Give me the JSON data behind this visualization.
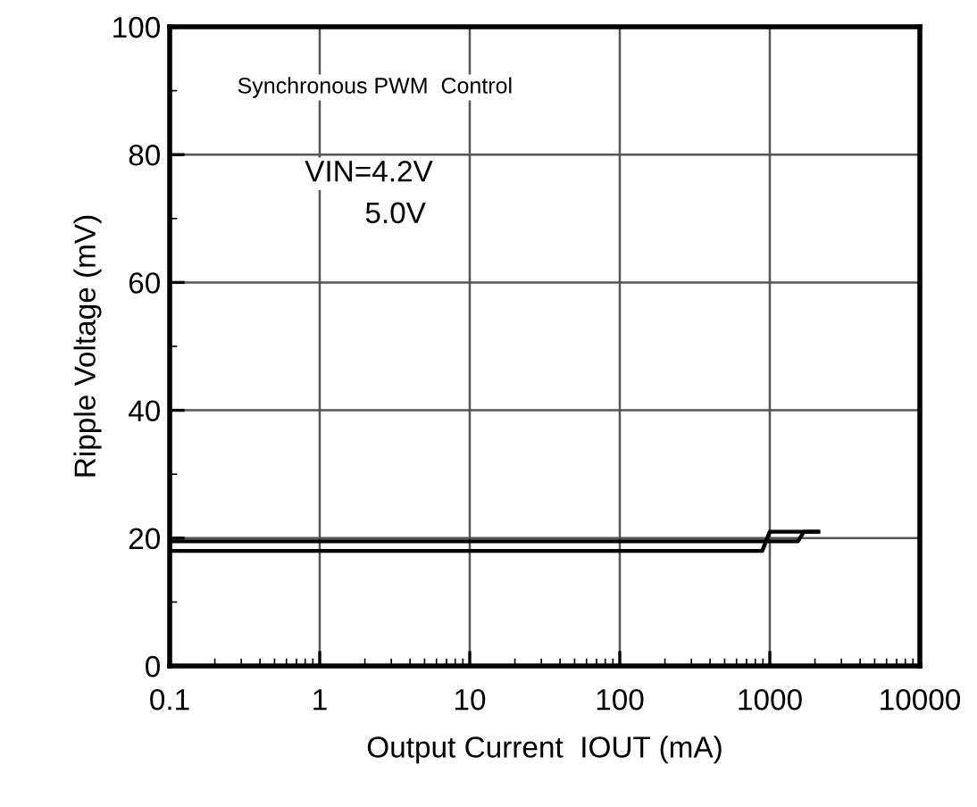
{
  "chart_data": {
    "type": "line",
    "xlabel": "Output Current  IOUT (mA)",
    "ylabel": "Ripple Voltage (mV)",
    "log": "x",
    "grid": true,
    "marker": "none",
    "line_style": "solid",
    "xlim": [
      0.1,
      10000
    ],
    "xticks": [
      0.1,
      1,
      10,
      100,
      1000,
      10000
    ],
    "ylim": [
      0,
      100
    ],
    "yticks": [
      0,
      20,
      40,
      60,
      80,
      100
    ],
    "series": [
      {
        "color": "#000000",
        "x": [
          0.1,
          890,
          1000,
          2100
        ],
        "values": [
          18,
          18,
          21,
          21
        ]
      },
      {
        "color": "#000000",
        "x": [
          0.1,
          1540,
          1690,
          2100
        ],
        "values": [
          19.5,
          19.5,
          21,
          21
        ]
      }
    ],
    "annotations": [
      "Synchronous PWM  Control",
      "VIN=4.2V",
      "5.0V"
    ]
  }
}
